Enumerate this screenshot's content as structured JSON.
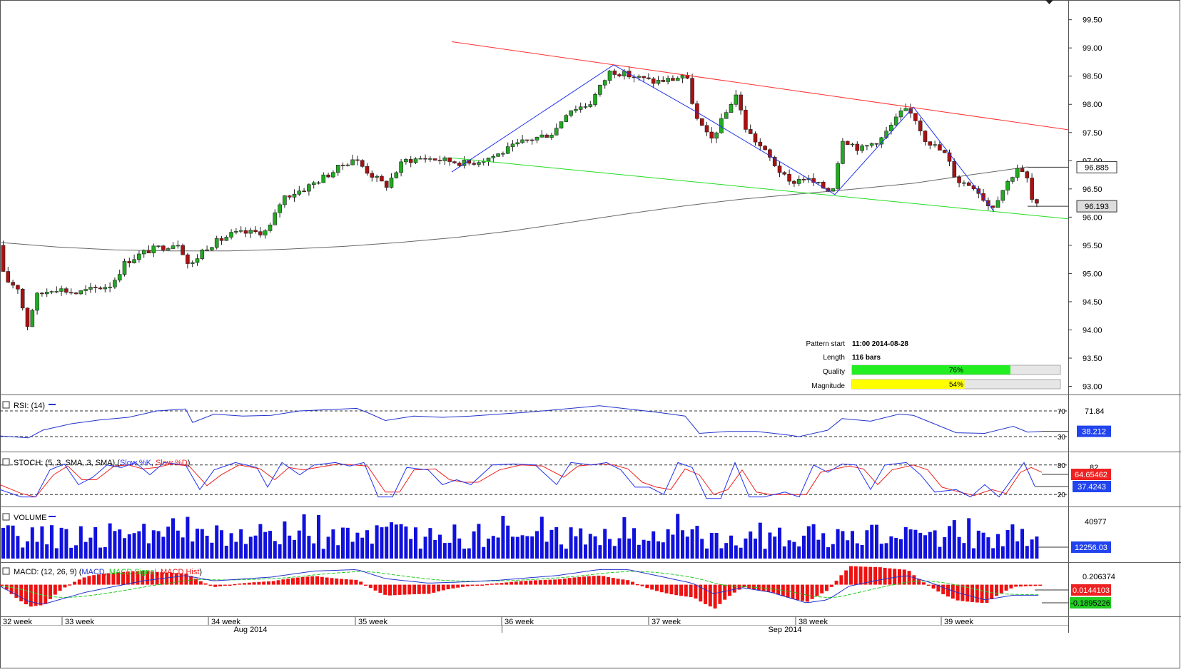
{
  "chart_data": {
    "type": "candlestick",
    "symbol_panel": {
      "y_ticks": [
        "99.50",
        "99.00",
        "98.50",
        "98.00",
        "97.50",
        "97.00",
        "96.50",
        "96.00",
        "95.50",
        "95.00",
        "94.50",
        "94.00",
        "93.50",
        "93.00"
      ],
      "ylim": [
        92.88,
        99.85
      ],
      "price_tags": [
        {
          "label": "96.885",
          "value": 96.885,
          "style": "outline"
        },
        {
          "label": "96.193",
          "value": 96.193,
          "style": "gray"
        }
      ],
      "moving_average": [
        [
          0,
          95.55
        ],
        [
          80,
          95.47
        ],
        [
          160,
          95.42
        ],
        [
          240,
          95.4
        ],
        [
          320,
          95.4
        ],
        [
          400,
          95.43
        ],
        [
          480,
          95.48
        ],
        [
          560,
          95.55
        ],
        [
          640,
          95.64
        ],
        [
          720,
          95.76
        ],
        [
          800,
          95.91
        ],
        [
          880,
          96.06
        ],
        [
          960,
          96.2
        ],
        [
          1040,
          96.32
        ],
        [
          1120,
          96.41
        ],
        [
          1200,
          96.5
        ],
        [
          1280,
          96.6
        ],
        [
          1360,
          96.75
        ],
        [
          1440,
          96.89
        ]
      ],
      "channel_lines": [
        {
          "name": "resistance",
          "color": "#ff3030",
          "from": [
            633,
            99.11
          ],
          "to": [
            1497,
            97.55
          ]
        },
        {
          "name": "support",
          "color": "#22dd22",
          "from": [
            633,
            97.05
          ],
          "to": [
            1497,
            95.97
          ]
        }
      ],
      "zigzag": [
        [
          633,
          96.8
        ],
        [
          860,
          98.7
        ],
        [
          978,
          97.85
        ],
        [
          1170,
          96.4
        ],
        [
          1280,
          97.95
        ],
        [
          1393,
          96.1
        ]
      ],
      "pattern_info": {
        "start_label": "Pattern start",
        "start_value": "11:00 2014-08-28",
        "length_label": "Length",
        "length_value": "116 bars",
        "quality_label": "Quality",
        "quality_value": "76%",
        "quality": 0.76,
        "magnitude_label": "Magnitude",
        "magnitude_value": "54%",
        "magnitude": 0.54
      }
    },
    "rsi": {
      "title": "RSI: (14)",
      "levels": [
        {
          "label": "70",
          "value": 70
        },
        {
          "label": "30",
          "value": 30
        }
      ],
      "ticks": [
        "71.84"
      ],
      "current": "38.212",
      "ylim": [
        10,
        90
      ],
      "series": [
        [
          0,
          31
        ],
        [
          40,
          28
        ],
        [
          60,
          40
        ],
        [
          100,
          50
        ],
        [
          140,
          56
        ],
        [
          180,
          60
        ],
        [
          220,
          70
        ],
        [
          260,
          73
        ],
        [
          270,
          52
        ],
        [
          300,
          65
        ],
        [
          340,
          62
        ],
        [
          380,
          63
        ],
        [
          420,
          70
        ],
        [
          460,
          72
        ],
        [
          500,
          74
        ],
        [
          520,
          65
        ],
        [
          540,
          55
        ],
        [
          580,
          62
        ],
        [
          620,
          60
        ],
        [
          660,
          62
        ],
        [
          700,
          65
        ],
        [
          740,
          68
        ],
        [
          780,
          72
        ],
        [
          820,
          76
        ],
        [
          840,
          78
        ],
        [
          880,
          73
        ],
        [
          920,
          68
        ],
        [
          960,
          62
        ],
        [
          980,
          35
        ],
        [
          1020,
          38
        ],
        [
          1060,
          38
        ],
        [
          1100,
          33
        ],
        [
          1120,
          30
        ],
        [
          1160,
          40
        ],
        [
          1180,
          58
        ],
        [
          1220,
          54
        ],
        [
          1260,
          65
        ],
        [
          1280,
          63
        ],
        [
          1300,
          54
        ],
        [
          1340,
          36
        ],
        [
          1380,
          35
        ],
        [
          1420,
          46
        ],
        [
          1440,
          37
        ],
        [
          1460,
          38
        ]
      ]
    },
    "stoch": {
      "title": "STOCH: (5, 3, SMA, 3, SMA)",
      "k_label": "Slow %K",
      "d_label": "Slow %D",
      "levels": [
        {
          "label": "80",
          "value": 80
        },
        {
          "label": "20",
          "value": 20
        }
      ],
      "ticks": [
        "82"
      ],
      "k_current": "64.65462",
      "d_current": "37.4243",
      "ylim": [
        0,
        100
      ],
      "k": [
        [
          0,
          30
        ],
        [
          30,
          15
        ],
        [
          50,
          15
        ],
        [
          70,
          70
        ],
        [
          90,
          82
        ],
        [
          110,
          40
        ],
        [
          130,
          55
        ],
        [
          150,
          80
        ],
        [
          170,
          75
        ],
        [
          190,
          85
        ],
        [
          210,
          60
        ],
        [
          230,
          85
        ],
        [
          260,
          80
        ],
        [
          280,
          30
        ],
        [
          300,
          70
        ],
        [
          330,
          85
        ],
        [
          360,
          75
        ],
        [
          375,
          35
        ],
        [
          395,
          85
        ],
        [
          420,
          60
        ],
        [
          440,
          80
        ],
        [
          470,
          85
        ],
        [
          490,
          78
        ],
        [
          510,
          85
        ],
        [
          530,
          15
        ],
        [
          550,
          15
        ],
        [
          570,
          75
        ],
        [
          600,
          70
        ],
        [
          620,
          40
        ],
        [
          640,
          50
        ],
        [
          660,
          40
        ],
        [
          690,
          80
        ],
        [
          720,
          82
        ],
        [
          750,
          80
        ],
        [
          780,
          40
        ],
        [
          800,
          85
        ],
        [
          830,
          80
        ],
        [
          850,
          85
        ],
        [
          870,
          70
        ],
        [
          890,
          35
        ],
        [
          910,
          35
        ],
        [
          930,
          20
        ],
        [
          950,
          85
        ],
        [
          970,
          75
        ],
        [
          990,
          12
        ],
        [
          1010,
          12
        ],
        [
          1030,
          85
        ],
        [
          1050,
          15
        ],
        [
          1070,
          15
        ],
        [
          1100,
          25
        ],
        [
          1120,
          15
        ],
        [
          1140,
          80
        ],
        [
          1160,
          65
        ],
        [
          1180,
          82
        ],
        [
          1200,
          80
        ],
        [
          1220,
          30
        ],
        [
          1240,
          80
        ],
        [
          1270,
          85
        ],
        [
          1290,
          60
        ],
        [
          1310,
          25
        ],
        [
          1340,
          30
        ],
        [
          1360,
          15
        ],
        [
          1380,
          40
        ],
        [
          1400,
          15
        ],
        [
          1420,
          55
        ],
        [
          1435,
          85
        ],
        [
          1450,
          37
        ]
      ],
      "d": [
        [
          0,
          40
        ],
        [
          30,
          22
        ],
        [
          50,
          15
        ],
        [
          75,
          60
        ],
        [
          95,
          78
        ],
        [
          115,
          50
        ],
        [
          135,
          50
        ],
        [
          160,
          78
        ],
        [
          180,
          80
        ],
        [
          200,
          72
        ],
        [
          220,
          75
        ],
        [
          240,
          82
        ],
        [
          265,
          78
        ],
        [
          290,
          38
        ],
        [
          310,
          60
        ],
        [
          335,
          80
        ],
        [
          365,
          72
        ],
        [
          385,
          50
        ],
        [
          405,
          75
        ],
        [
          425,
          70
        ],
        [
          445,
          75
        ],
        [
          475,
          82
        ],
        [
          495,
          80
        ],
        [
          515,
          78
        ],
        [
          540,
          25
        ],
        [
          560,
          25
        ],
        [
          580,
          70
        ],
        [
          610,
          72
        ],
        [
          630,
          50
        ],
        [
          650,
          45
        ],
        [
          670,
          45
        ],
        [
          700,
          70
        ],
        [
          730,
          80
        ],
        [
          760,
          78
        ],
        [
          790,
          55
        ],
        [
          810,
          78
        ],
        [
          840,
          82
        ],
        [
          860,
          80
        ],
        [
          880,
          72
        ],
        [
          900,
          45
        ],
        [
          920,
          35
        ],
        [
          940,
          30
        ],
        [
          960,
          72
        ],
        [
          980,
          60
        ],
        [
          1000,
          20
        ],
        [
          1020,
          30
        ],
        [
          1040,
          70
        ],
        [
          1060,
          25
        ],
        [
          1080,
          20
        ],
        [
          1110,
          20
        ],
        [
          1130,
          20
        ],
        [
          1150,
          65
        ],
        [
          1170,
          72
        ],
        [
          1190,
          78
        ],
        [
          1210,
          72
        ],
        [
          1230,
          40
        ],
        [
          1250,
          70
        ],
        [
          1280,
          80
        ],
        [
          1300,
          70
        ],
        [
          1320,
          35
        ],
        [
          1345,
          25
        ],
        [
          1365,
          18
        ],
        [
          1390,
          30
        ],
        [
          1410,
          22
        ],
        [
          1430,
          65
        ],
        [
          1445,
          75
        ],
        [
          1460,
          65
        ]
      ]
    },
    "volume": {
      "title": "VOLUME",
      "ticks": [
        "40977"
      ],
      "current": "12256.03",
      "ylim": [
        0,
        46000
      ]
    },
    "macd": {
      "title": "MACD: (12, 26, 9)",
      "macd_label": "MACD",
      "signal_label": "MACD Signal",
      "hist_label": "MACD Hist",
      "ticks": [
        "0.206374"
      ],
      "macd_current": "0.0144103",
      "signal_current": "-0.1895226",
      "ylim": [
        -0.4,
        0.26
      ]
    },
    "x_axis": {
      "week_labels": [
        {
          "label": "32 week",
          "x": 4
        },
        {
          "label": "33 week",
          "x": 91
        },
        {
          "label": "34 week",
          "x": 296
        },
        {
          "label": "35 week",
          "x": 502
        },
        {
          "label": "36 week",
          "x": 707
        },
        {
          "label": "37 week",
          "x": 913
        },
        {
          "label": "38 week",
          "x": 1119
        },
        {
          "label": "39 week",
          "x": 1323
        }
      ],
      "month_labels": [
        {
          "label": "Aug 2014",
          "x": 351
        },
        {
          "label": "Sep 2014",
          "x": 1100
        }
      ]
    },
    "colors": {
      "bull": "#22aa22",
      "bear": "#aa1111",
      "ma": "#666666",
      "rsi": "#2233cc",
      "stoch_k": "#2233ee",
      "stoch_d": "#ee2222",
      "volume": "#1111dd",
      "macd": "#2233cc",
      "signal": "#22cc22",
      "hist": "#ee1111",
      "quality_fill": "#22ee22",
      "magnitude_fill": "#ffff00"
    }
  }
}
